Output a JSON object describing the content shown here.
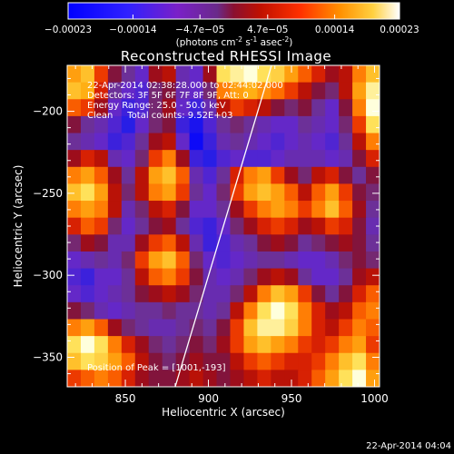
{
  "chart_data": {
    "type": "heatmap",
    "title": "Reconstructed RHESSI Image",
    "xlabel": "Heliocentric X (arcsec)",
    "ylabel": "Heliocentric Y (arcsec)",
    "xlim": [
      815,
      1003
    ],
    "ylim": [
      -368,
      -172
    ],
    "x_ticks": [
      850,
      900,
      950,
      1000
    ],
    "x_tick_labels": [
      "850",
      "900",
      "950",
      "1000"
    ],
    "y_ticks": [
      -200,
      -250,
      -300,
      -350
    ],
    "y_tick_labels": [
      "-200",
      "-250",
      "-300",
      "-350"
    ],
    "colorbar": {
      "min": -0.00023,
      "max": 0.00023,
      "ticks": [
        -0.00023,
        -0.00014,
        -4.7e-05,
        4.7e-05,
        0.00014,
        0.00023
      ],
      "tick_labels": [
        "-0.00023",
        "-0.00014",
        "-4.7e-05",
        "4.7e-05",
        "0.00014",
        "0.00023"
      ],
      "unit_label": "(photons cm",
      "unit_exp1": "-2",
      "unit_mid": " s",
      "unit_exp2": "-1",
      "unit_mid2": " asec",
      "unit_exp3": "-2",
      "unit_end": ")"
    },
    "annotations": [
      "22-Apr-2014 02:38:28.000 to 02:44:02.000",
      "Detectors: 3F 5F 6F 7F 8F 9F, Att: 0",
      "Energy Range: 25.0 - 50.0 keV",
      "Clean     Total counts: 9.52E+03"
    ],
    "peak_label": "Position of Peak = [1001,-193]",
    "limb_line": [
      [
        880,
        -368
      ],
      [
        938,
        -172
      ]
    ],
    "intensity_grid_note_hidden": "",
    "grid": [
      [
        0.7,
        0.8,
        0.4,
        0.0,
        -0.2,
        -0.4,
        0.1,
        0.2,
        -0.3,
        -0.4,
        0.1,
        0.9,
        0.95,
        1.0,
        0.9,
        0.85,
        0.7,
        0.5,
        0.3,
        0.1,
        0.2,
        0.6,
        0.8
      ],
      [
        0.8,
        0.75,
        0.3,
        -0.2,
        -0.4,
        -0.5,
        -0.1,
        0.0,
        -0.3,
        -0.4,
        -0.1,
        0.6,
        0.7,
        0.75,
        0.65,
        0.55,
        0.4,
        0.2,
        0.0,
        -0.1,
        0.2,
        0.7,
        0.95
      ],
      [
        0.5,
        0.4,
        0.1,
        -0.4,
        -0.6,
        -0.5,
        -0.1,
        0.1,
        -0.4,
        -0.6,
        -0.3,
        0.2,
        0.4,
        0.3,
        0.2,
        0.0,
        -0.1,
        0.0,
        -0.2,
        -0.4,
        0.0,
        0.6,
        1.0
      ],
      [
        0.0,
        -0.2,
        -0.3,
        -0.5,
        -0.7,
        -0.4,
        -0.1,
        0.0,
        -0.6,
        -0.8,
        -0.5,
        -0.2,
        -0.1,
        -0.2,
        -0.3,
        -0.4,
        -0.4,
        -0.2,
        -0.3,
        -0.4,
        -0.1,
        0.4,
        0.9
      ],
      [
        -0.2,
        -0.3,
        -0.4,
        -0.6,
        -0.5,
        -0.2,
        0.1,
        0.2,
        -0.4,
        -0.9,
        -0.6,
        -0.3,
        -0.2,
        -0.3,
        -0.4,
        -0.5,
        -0.4,
        -0.3,
        -0.4,
        -0.5,
        -0.2,
        0.2,
        0.6
      ],
      [
        0.1,
        0.3,
        0.2,
        -0.3,
        -0.4,
        -0.1,
        0.4,
        0.6,
        0.1,
        -0.6,
        -0.7,
        -0.5,
        -0.4,
        -0.5,
        -0.5,
        -0.4,
        -0.3,
        -0.3,
        -0.3,
        -0.4,
        -0.3,
        0.0,
        0.3
      ],
      [
        0.6,
        0.7,
        0.5,
        0.1,
        -0.2,
        0.2,
        0.7,
        0.8,
        0.5,
        -0.3,
        -0.5,
        -0.2,
        0.3,
        0.6,
        0.7,
        0.4,
        0.1,
        -0.1,
        0.2,
        0.3,
        0.0,
        -0.2,
        0.0
      ],
      [
        0.8,
        0.9,
        0.7,
        0.2,
        -0.1,
        0.2,
        0.6,
        0.7,
        0.4,
        -0.2,
        -0.4,
        -0.1,
        0.4,
        0.7,
        0.8,
        0.7,
        0.5,
        0.2,
        0.5,
        0.7,
        0.4,
        0.0,
        -0.1
      ],
      [
        0.6,
        0.7,
        0.6,
        0.2,
        -0.3,
        -0.1,
        0.2,
        0.3,
        0.0,
        -0.4,
        -0.4,
        -0.2,
        0.1,
        0.4,
        0.6,
        0.7,
        0.6,
        0.4,
        0.6,
        0.8,
        0.5,
        0.1,
        -0.2
      ],
      [
        0.3,
        0.5,
        0.4,
        -0.1,
        -0.4,
        -0.2,
        0.0,
        0.1,
        -0.2,
        -0.5,
        -0.6,
        -0.4,
        -0.1,
        0.1,
        0.3,
        0.4,
        0.3,
        0.1,
        0.2,
        0.4,
        0.3,
        0.0,
        -0.3
      ],
      [
        -0.1,
        0.1,
        0.0,
        -0.3,
        -0.3,
        0.1,
        0.4,
        0.5,
        0.2,
        -0.3,
        -0.6,
        -0.5,
        -0.3,
        -0.2,
        0.0,
        0.1,
        0.0,
        -0.2,
        -0.1,
        0.0,
        0.1,
        0.0,
        -0.2
      ],
      [
        -0.4,
        -0.3,
        -0.2,
        -0.3,
        -0.1,
        0.4,
        0.7,
        0.8,
        0.5,
        -0.1,
        -0.4,
        -0.5,
        -0.4,
        -0.3,
        -0.2,
        -0.2,
        -0.3,
        -0.4,
        -0.4,
        -0.3,
        -0.1,
        0.0,
        -0.1
      ],
      [
        -0.5,
        -0.6,
        -0.4,
        -0.4,
        -0.2,
        0.2,
        0.5,
        0.6,
        0.4,
        0.0,
        -0.3,
        -0.4,
        -0.3,
        -0.1,
        0.1,
        0.2,
        0.1,
        -0.2,
        -0.4,
        -0.4,
        -0.2,
        0.1,
        0.2
      ],
      [
        -0.4,
        -0.5,
        -0.4,
        -0.3,
        -0.2,
        0.0,
        0.1,
        0.2,
        0.1,
        -0.1,
        -0.3,
        -0.3,
        -0.1,
        0.2,
        0.6,
        0.8,
        0.7,
        0.4,
        0.0,
        -0.2,
        0.0,
        0.3,
        0.5
      ],
      [
        0.0,
        -0.1,
        -0.3,
        -0.4,
        -0.3,
        -0.2,
        -0.2,
        -0.1,
        -0.2,
        -0.2,
        -0.3,
        -0.2,
        0.2,
        0.6,
        0.9,
        1.0,
        0.9,
        0.6,
        0.3,
        0.1,
        0.2,
        0.5,
        0.6
      ],
      [
        0.6,
        0.7,
        0.5,
        0.1,
        -0.1,
        -0.2,
        -0.3,
        -0.3,
        -0.2,
        -0.1,
        -0.2,
        0.0,
        0.4,
        0.8,
        0.95,
        0.95,
        0.85,
        0.6,
        0.3,
        0.2,
        0.4,
        0.6,
        0.5
      ],
      [
        0.9,
        1.0,
        0.9,
        0.6,
        0.3,
        0.1,
        -0.1,
        -0.2,
        -0.1,
        0.0,
        -0.1,
        0.1,
        0.4,
        0.7,
        0.8,
        0.7,
        0.6,
        0.4,
        0.3,
        0.4,
        0.6,
        0.7,
        0.4
      ],
      [
        0.8,
        0.9,
        0.85,
        0.7,
        0.5,
        0.2,
        0.0,
        -0.1,
        0.0,
        0.1,
        0.0,
        0.0,
        0.2,
        0.4,
        0.5,
        0.4,
        0.3,
        0.3,
        0.4,
        0.6,
        0.8,
        0.9,
        0.6
      ],
      [
        0.4,
        0.5,
        0.6,
        0.5,
        0.3,
        0.1,
        0.0,
        0.0,
        0.1,
        0.2,
        0.1,
        0.0,
        0.1,
        0.2,
        0.3,
        0.2,
        0.2,
        0.3,
        0.5,
        0.7,
        0.9,
        1.0,
        0.7
      ]
    ]
  },
  "footer": {
    "timestamp": "22-Apr-2014 04:04"
  }
}
